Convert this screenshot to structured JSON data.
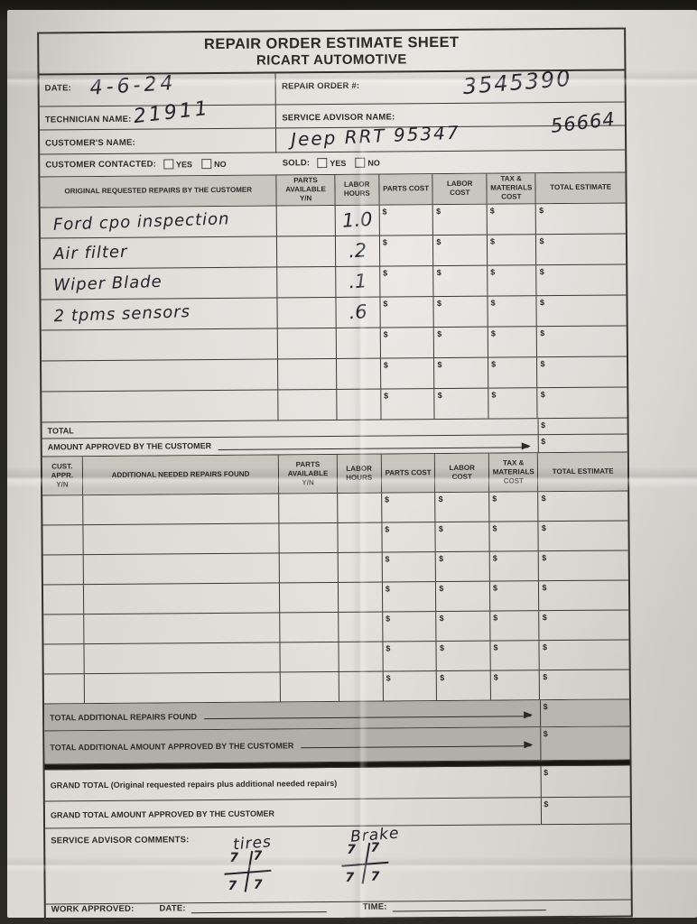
{
  "form": {
    "title": "REPAIR ORDER ESTIMATE SHEET",
    "subtitle": "RICART AUTOMOTIVE",
    "dollar_sign": "$",
    "header_fields": {
      "date_label": "DATE:",
      "date_value": "4-6-24",
      "repair_order_label": "REPAIR ORDER #:",
      "repair_order_value": "3545390",
      "technician_label": "TECHNICIAN NAME:",
      "technician_value": "21911",
      "service_advisor_label": "SERVICE ADVISOR NAME:",
      "service_advisor_value": "",
      "customer_label": "CUSTOMER'S NAME:",
      "customer_value": "Jeep  RRT 95347",
      "customer_value_right": "56664",
      "customer_contacted_label": "CUSTOMER CONTACTED:",
      "sold_label": "SOLD:",
      "yes_label": "YES",
      "no_label": "NO",
      "customer_contacted_yes_checked": false,
      "customer_contacted_no_checked": false,
      "sold_yes_checked": false,
      "sold_no_checked": false
    },
    "original_repairs_table": {
      "columns": [
        "ORIGINAL REQUESTED REPAIRS BY THE CUSTOMER",
        "PARTS AVAILABLE Y/N",
        "LABOR HOURS",
        "PARTS COST",
        "LABOR COST",
        "TAX & MATERIALS COST",
        "TOTAL ESTIMATE"
      ],
      "rows": [
        {
          "repair": "Ford cpo inspection",
          "labor_hours": "1.0"
        },
        {
          "repair": "Air filter",
          "labor_hours": ".2"
        },
        {
          "repair": "Wiper Blade",
          "labor_hours": ".1"
        },
        {
          "repair": "2 tpms sensors",
          "labor_hours": ".6"
        },
        {
          "repair": "",
          "labor_hours": ""
        },
        {
          "repair": "",
          "labor_hours": ""
        },
        {
          "repair": "",
          "labor_hours": ""
        }
      ],
      "total_label": "TOTAL",
      "amount_approved_label": "AMOUNT APPROVED BY THE CUSTOMER"
    },
    "additional_repairs_table": {
      "columns": [
        "CUST. APPR. Y/N",
        "ADDITIONAL NEEDED REPAIRS FOUND",
        "PARTS AVAILABLE Y/N",
        "LABOR HOURS",
        "PARTS COST",
        "LABOR COST",
        "TAX & MATERIALS COST",
        "TOTAL ESTIMATE"
      ],
      "empty_row_count": 7,
      "total_additional_label": "TOTAL ADDITIONAL REPAIRS FOUND",
      "total_additional_approved_label": "TOTAL ADDITIONAL AMOUNT APPROVED BY THE CUSTOMER",
      "grand_total_label": "GRAND TOTAL (Original requested repairs plus additional needed repairs)",
      "grand_total_approved_label": "GRAND TOTAL AMOUNT APPROVED BY THE CUSTOMER"
    },
    "comments": {
      "label": "SERVICE ADVISOR COMMENTS:",
      "entries": [
        {
          "title": "tires",
          "quadrants": [
            "7",
            "7",
            "7",
            "7"
          ]
        },
        {
          "title": "Brake",
          "quadrants": [
            "7",
            "7",
            "7",
            "7"
          ]
        }
      ]
    },
    "footer": {
      "work_approved_label": "WORK APPROVED:",
      "date_label": "DATE:",
      "time_label": "TIME:"
    }
  }
}
